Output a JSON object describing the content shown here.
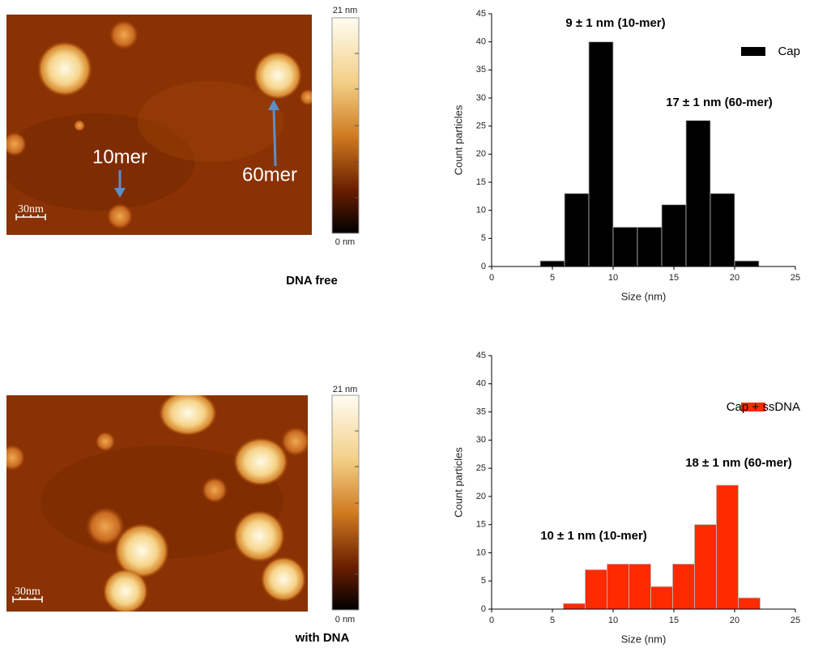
{
  "chart_data": [
    {
      "type": "histogram",
      "xlabel": "Size (nm)",
      "ylabel": "Count particles",
      "bins": [
        4,
        6,
        8,
        10,
        12,
        14,
        16,
        18,
        20,
        22
      ],
      "series": [
        {
          "name": "Cap",
          "color": "#000000",
          "values": [
            1,
            13,
            40,
            7,
            7,
            11,
            26,
            13,
            1
          ]
        }
      ],
      "xlim": [
        0,
        25
      ],
      "xticks": [
        0,
        5,
        10,
        15,
        20,
        25
      ],
      "ylim": [
        0,
        45
      ],
      "yticks": [
        0,
        5,
        10,
        15,
        20,
        25,
        30,
        35,
        40,
        45
      ],
      "annotations": [
        "9 ± 1 nm (10-mer)",
        "17 ± 1 nm (60-mer)"
      ],
      "legend": "upper right"
    },
    {
      "type": "histogram",
      "xlabel": "Size (nm)",
      "ylabel": "Count particles",
      "bins": [
        5.9,
        7.7,
        9.5,
        11.3,
        13.1,
        14.9,
        16.7,
        18.5,
        20.3,
        22.1
      ],
      "series": [
        {
          "name": "Cap + ssDNA",
          "color": "#ff2a00",
          "values": [
            1,
            7,
            8,
            8,
            4,
            8,
            15,
            22,
            2
          ]
        }
      ],
      "xlim": [
        0,
        25
      ],
      "xticks": [
        0,
        5,
        10,
        15,
        20,
        25
      ],
      "ylim": [
        0,
        45
      ],
      "yticks": [
        0,
        5,
        10,
        15,
        20,
        25,
        30,
        35,
        40,
        45
      ],
      "annotations": [
        "18 ± 1 nm (60-mer)",
        "10 ± 1 nm (10-mer)"
      ],
      "legend": "upper right"
    }
  ],
  "afm_images": [
    {
      "scale_max": "21 nm",
      "scale_min": "0 nm",
      "scale_bar": "30nm",
      "labels": [
        "10mer",
        "60mer"
      ],
      "caption": "DNA free"
    },
    {
      "scale_max": "21 nm",
      "scale_min": "0 nm",
      "scale_bar": "30nm",
      "labels": [],
      "caption": "with DNA"
    }
  ]
}
